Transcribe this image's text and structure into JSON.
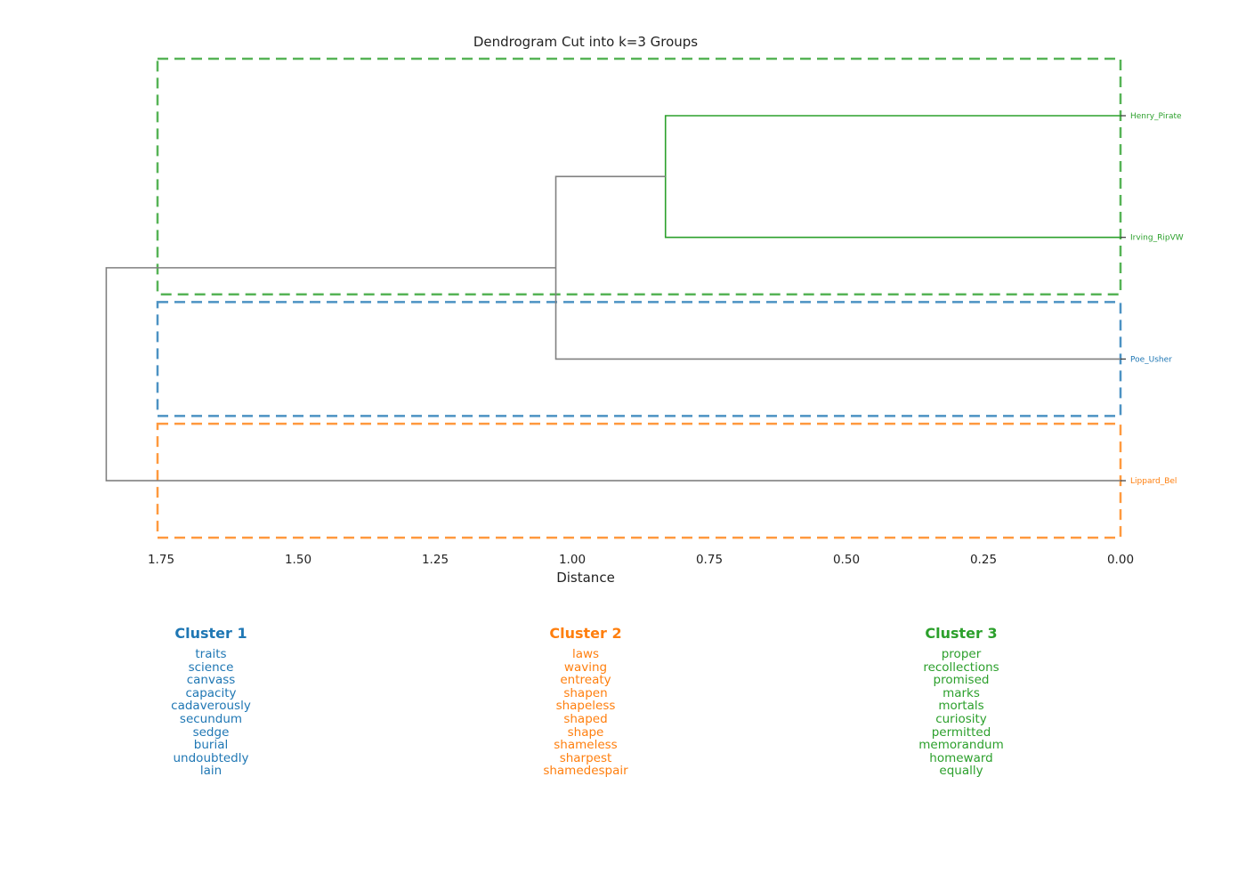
{
  "chart_data": {
    "type": "dendrogram",
    "title": "Dendrogram Cut into k=3 Groups",
    "xlabel": "Distance",
    "xlim": [
      1.75,
      0.0
    ],
    "xticks": [
      "1.75",
      "1.50",
      "1.25",
      "1.00",
      "0.75",
      "0.50",
      "0.25",
      "0.00"
    ],
    "tick_values": [
      1.75,
      1.5,
      1.25,
      1.0,
      0.75,
      0.5,
      0.25,
      0.0
    ],
    "leaves": [
      {
        "label": "Henry_Pirate",
        "cluster": 3
      },
      {
        "label": "Irving_RipVW",
        "cluster": 3
      },
      {
        "label": "Poe_Usher",
        "cluster": 1
      },
      {
        "label": "Lippard_Bel",
        "cluster": 2
      }
    ],
    "merges": [
      {
        "left": "Henry_Pirate",
        "right": "Irving_RipVW",
        "distance": 0.83,
        "color": "#2ca02c"
      },
      {
        "left": "Henry_Pirate+Irving_RipVW",
        "right": "Poe_Usher",
        "distance": 1.03,
        "color": "#808080"
      },
      {
        "left": "Henry_Pirate+Irving_RipVW+Poe_Usher",
        "right": "Lippard_Bel",
        "distance": 1.85,
        "color": "#808080"
      }
    ],
    "cut_boxes": [
      {
        "cluster": 3,
        "leaves": [
          "Henry_Pirate",
          "Irving_RipVW"
        ],
        "color": "#2ca02c"
      },
      {
        "cluster": 1,
        "leaves": [
          "Poe_Usher"
        ],
        "color": "#1f77b4"
      },
      {
        "cluster": 2,
        "leaves": [
          "Lippard_Bel"
        ],
        "color": "#ff7f0e"
      }
    ],
    "clusters": [
      {
        "title": "Cluster 1",
        "color": "#1f77b4",
        "words": [
          "traits",
          "science",
          "canvass",
          "capacity",
          "cadaverously",
          "secundum",
          "sedge",
          "burial",
          "undoubtedly",
          "lain"
        ]
      },
      {
        "title": "Cluster 2",
        "color": "#ff7f0e",
        "words": [
          "laws",
          "waving",
          "entreaty",
          "shapen",
          "shapeless",
          "shaped",
          "shape",
          "shameless",
          "sharpest",
          "shamedespair"
        ]
      },
      {
        "title": "Cluster 3",
        "color": "#2ca02c",
        "words": [
          "proper",
          "recollections",
          "promised",
          "marks",
          "mortals",
          "curiosity",
          "permitted",
          "memorandum",
          "homeward",
          "equally"
        ]
      }
    ]
  }
}
